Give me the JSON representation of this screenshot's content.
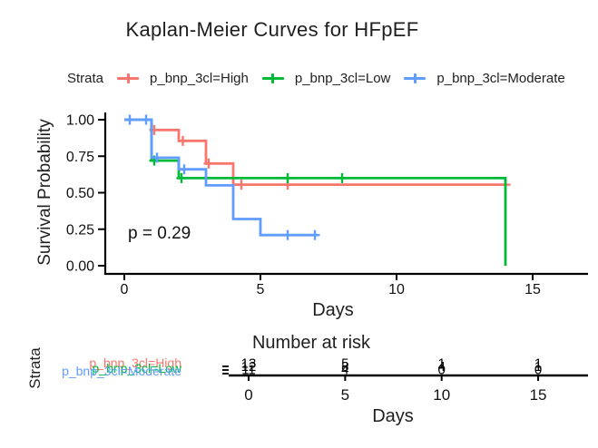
{
  "title": "Kaplan-Meier Curves for HFpEF",
  "legend": {
    "title": "Strata",
    "position": "top",
    "items": [
      {
        "label": "p_bnp_3cl=High",
        "color": "#F8766D"
      },
      {
        "label": "p_bnp_3cl=Low",
        "color": "#00BA38"
      },
      {
        "label": "p_bnp_3cl=Moderate",
        "color": "#619CFF"
      }
    ]
  },
  "chart_data": {
    "type": "line",
    "subtype": "kaplan-meier-step",
    "title": "Kaplan-Meier Curves for HFpEF",
    "xlabel": "Days",
    "ylabel": "Survival Probability",
    "xlim": [
      0,
      15
    ],
    "ylim": [
      0.0,
      1.0
    ],
    "xticks": [
      "0",
      "5",
      "10",
      "15"
    ],
    "yticks": [
      "0.00",
      "0.25",
      "0.50",
      "0.75",
      "1.00"
    ],
    "grid": false,
    "legend_position": "top",
    "pvalue_label": "p = 0.29",
    "series": [
      {
        "name": "p_bnp_3cl=High",
        "color": "#F8766D",
        "steps": [
          [
            0,
            1.0
          ],
          [
            1,
            1.0
          ],
          [
            1,
            0.93
          ],
          [
            2,
            0.93
          ],
          [
            2,
            0.855
          ],
          [
            3,
            0.855
          ],
          [
            3,
            0.7
          ],
          [
            4,
            0.7
          ],
          [
            4,
            0.555
          ],
          [
            14,
            0.555
          ]
        ],
        "censors": [
          [
            1.1,
            0.93
          ],
          [
            2.15,
            0.855
          ],
          [
            3.1,
            0.7
          ],
          [
            4.3,
            0.555
          ],
          [
            6,
            0.555
          ],
          [
            14,
            0.555
          ]
        ]
      },
      {
        "name": "p_bnp_3cl=Low",
        "color": "#00BA38",
        "steps": [
          [
            0,
            1.0
          ],
          [
            1,
            1.0
          ],
          [
            1,
            0.72
          ],
          [
            2,
            0.72
          ],
          [
            2,
            0.6
          ],
          [
            14,
            0.6
          ],
          [
            14,
            0.0
          ]
        ],
        "censors": [
          [
            1.1,
            0.72
          ],
          [
            2.1,
            0.6
          ],
          [
            6,
            0.6
          ],
          [
            8,
            0.6
          ]
        ]
      },
      {
        "name": "p_bnp_3cl=Moderate",
        "color": "#619CFF",
        "steps": [
          [
            0,
            1.0
          ],
          [
            1,
            1.0
          ],
          [
            1,
            0.74
          ],
          [
            2,
            0.74
          ],
          [
            2,
            0.66
          ],
          [
            3,
            0.66
          ],
          [
            3,
            0.55
          ],
          [
            4,
            0.55
          ],
          [
            4,
            0.32
          ],
          [
            5,
            0.32
          ],
          [
            5,
            0.21
          ],
          [
            7.1,
            0.21
          ]
        ],
        "censors": [
          [
            0.2,
            1.0
          ],
          [
            0.8,
            1.0
          ],
          [
            1.2,
            0.74
          ],
          [
            2.2,
            0.66
          ],
          [
            6,
            0.21
          ],
          [
            7,
            0.21
          ]
        ]
      }
    ]
  },
  "risk_table": {
    "title": "Number at risk",
    "ylabel": "Strata",
    "xlabel": "Days",
    "xticks": [
      "0",
      "5",
      "10",
      "15"
    ],
    "rows": [
      {
        "label": "p_bnp_3cl=High",
        "color": "#F8766D",
        "values": [
          "13",
          "5",
          "1",
          "1"
        ]
      },
      {
        "label": "p_bnp_3cl=Low",
        "color": "#00BA38",
        "values": [
          "12",
          "8",
          "4",
          "1"
        ]
      },
      {
        "label": "p_bnp_3cl=Moderate",
        "color": "#619CFF",
        "values": [
          "11",
          "4",
          "0",
          "0"
        ]
      }
    ]
  }
}
